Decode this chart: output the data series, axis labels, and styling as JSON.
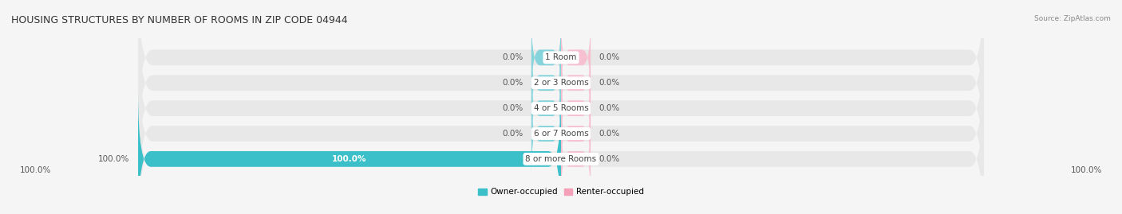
{
  "title": "HOUSING STRUCTURES BY NUMBER OF ROOMS IN ZIP CODE 04944",
  "source": "Source: ZipAtlas.com",
  "categories": [
    "1 Room",
    "2 or 3 Rooms",
    "4 or 5 Rooms",
    "6 or 7 Rooms",
    "8 or more Rooms"
  ],
  "owner_values": [
    0.0,
    0.0,
    0.0,
    0.0,
    100.0
  ],
  "renter_values": [
    0.0,
    0.0,
    0.0,
    0.0,
    0.0
  ],
  "owner_color": "#3bbfc9",
  "renter_color": "#f4a0b8",
  "bar_bg_color": "#e8e8e8",
  "owner_stub_color": "#85d4db",
  "renter_stub_color": "#f7c0d0",
  "text_color": "#555555",
  "cat_text_color": "#444444",
  "white": "#ffffff",
  "background_color": "#f5f5f5",
  "title_color": "#333333",
  "source_color": "#888888",
  "title_fontsize": 9,
  "label_fontsize": 7.5,
  "cat_fontsize": 7.5,
  "stub_size": 7,
  "bar_height": 0.62,
  "row_sep_color": "#dddddd",
  "axis_label_left": "100.0%",
  "axis_label_right": "100.0%"
}
